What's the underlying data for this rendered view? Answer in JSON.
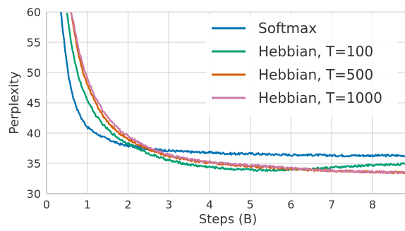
{
  "chart_data": {
    "type": "line",
    "title": "",
    "xlabel": "Steps (B)",
    "ylabel": "Perplexity",
    "xlim": [
      0,
      8.8
    ],
    "ylim": [
      30,
      60
    ],
    "xticks": [
      0,
      1,
      2,
      3,
      4,
      5,
      6,
      7,
      8
    ],
    "yticks": [
      30,
      35,
      40,
      45,
      50,
      55,
      60
    ],
    "grid": true,
    "legend_position": "top-right",
    "series": [
      {
        "name": "Softmax",
        "color": "#0072B2",
        "x": [
          0.35,
          0.45,
          0.55,
          0.65,
          0.75,
          0.85,
          1.0,
          1.2,
          1.4,
          1.6,
          1.8,
          2.0,
          2.5,
          3.0,
          3.5,
          4.0,
          4.5,
          5.0,
          5.5,
          6.0,
          6.5,
          7.0,
          7.5,
          8.0,
          8.8
        ],
        "y": [
          60,
          54,
          49,
          46,
          44,
          42.5,
          41,
          40,
          39.3,
          38.7,
          38.2,
          37.9,
          37.4,
          37.1,
          36.9,
          36.8,
          36.6,
          36.6,
          36.5,
          36.4,
          36.4,
          36.3,
          36.3,
          36.3,
          36.3
        ]
      },
      {
        "name": "Hebbian, T=100",
        "color": "#009E73",
        "x": [
          0.5,
          0.6,
          0.7,
          0.8,
          0.9,
          1.0,
          1.2,
          1.4,
          1.6,
          1.8,
          2.0,
          2.5,
          3.0,
          3.5,
          4.0,
          4.5,
          5.0,
          5.5,
          6.0,
          6.5,
          7.0,
          7.5,
          8.0,
          8.8
        ],
        "y": [
          60,
          55,
          51.5,
          49,
          47,
          45.5,
          43,
          41.3,
          40,
          39,
          38.3,
          36.6,
          35.5,
          34.8,
          34.4,
          34.1,
          33.9,
          33.9,
          34.0,
          34.1,
          34.3,
          34.5,
          34.7,
          34.9
        ]
      },
      {
        "name": "Hebbian, T=500",
        "color": "#D55E00",
        "x": [
          0.6,
          0.7,
          0.8,
          0.9,
          1.0,
          1.2,
          1.4,
          1.6,
          1.8,
          2.0,
          2.5,
          3.0,
          3.5,
          4.0,
          4.5,
          5.0,
          5.5,
          6.0,
          6.5,
          7.0,
          7.5,
          8.0,
          8.8
        ],
        "y": [
          60,
          56,
          52.5,
          50,
          48,
          45,
          42.7,
          41.1,
          39.9,
          39.0,
          37.3,
          36.2,
          35.5,
          35.1,
          34.8,
          34.5,
          34.3,
          34.1,
          33.9,
          33.8,
          33.7,
          33.6,
          33.5
        ]
      },
      {
        "name": "Hebbian, T=1000",
        "color": "#CC79A7",
        "x": [
          0.6,
          0.7,
          0.8,
          0.9,
          1.0,
          1.2,
          1.4,
          1.6,
          1.8,
          2.0,
          2.5,
          3.0,
          3.5,
          4.0,
          4.5,
          5.0,
          5.5,
          6.0,
          6.5,
          7.0,
          7.5,
          8.0,
          8.8
        ],
        "y": [
          60,
          57,
          53.5,
          51,
          49,
          45.8,
          43.5,
          41.8,
          40.5,
          39.5,
          37.6,
          36.4,
          35.7,
          35.2,
          34.9,
          34.7,
          34.5,
          34.2,
          34.0,
          33.8,
          33.7,
          33.6,
          33.5
        ]
      }
    ]
  }
}
